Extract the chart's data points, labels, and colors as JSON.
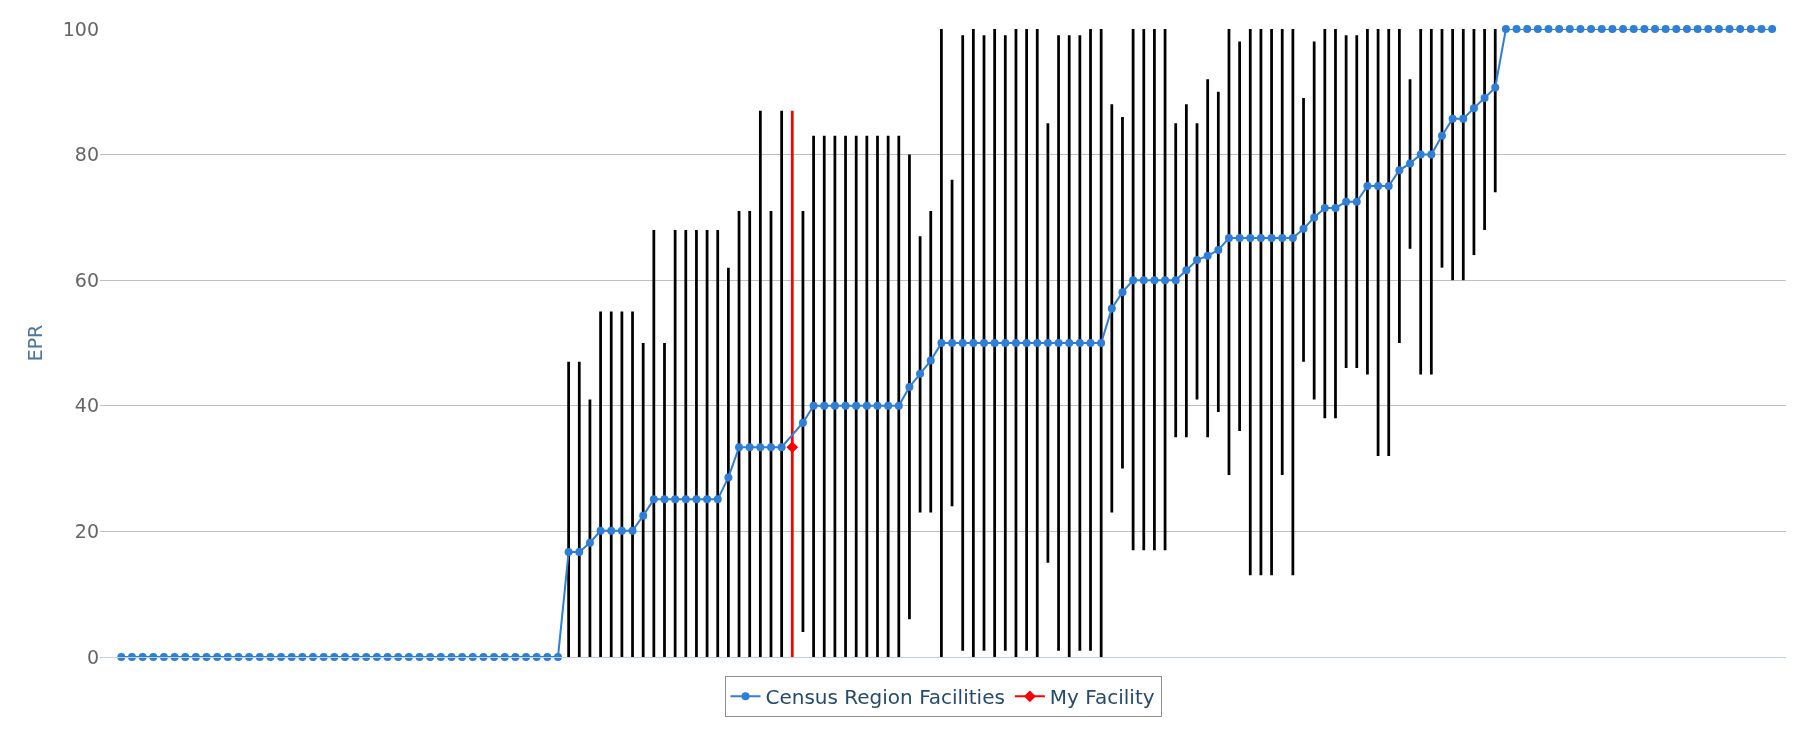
{
  "chart_data": {
    "type": "line",
    "ylabel": "EPR",
    "categories": [
      null,
      null,
      null,
      null,
      null,
      null,
      null,
      null,
      null,
      null,
      null,
      null,
      null,
      null,
      null,
      null,
      null,
      null,
      null,
      null,
      null,
      null,
      null,
      null,
      null,
      null,
      null,
      null,
      null,
      null,
      null,
      null,
      null,
      null,
      null,
      null,
      null,
      null,
      null,
      null,
      null,
      null,
      null,
      null,
      null,
      null,
      null,
      null,
      null,
      null,
      null,
      null,
      null,
      null,
      null,
      null,
      null,
      null,
      null,
      null,
      null,
      null,
      null,
      null,
      null,
      null,
      null,
      null,
      null,
      null,
      null,
      null,
      null,
      null,
      null,
      null,
      null,
      null,
      null,
      null,
      null,
      null,
      null,
      null,
      null,
      null,
      null,
      null,
      null,
      null,
      null,
      null,
      null,
      null,
      null,
      null,
      null,
      null,
      null,
      null,
      null,
      null,
      null,
      null,
      null,
      null,
      null,
      null,
      null,
      null,
      null,
      null,
      null,
      null,
      null,
      null,
      null,
      null,
      null,
      null,
      null,
      null,
      null,
      null,
      null,
      null,
      null,
      null,
      null,
      null,
      null,
      null,
      null,
      null,
      null,
      null,
      null,
      null,
      null,
      null,
      null,
      null,
      null,
      null,
      null,
      null,
      null,
      null,
      null,
      null,
      null,
      null,
      null,
      null,
      null,
      null
    ],
    "series": [
      {
        "type": "bar",
        "color": "#000000",
        "base": [
          null,
          null,
          null,
          null,
          null,
          null,
          null,
          null,
          null,
          null,
          null,
          null,
          null,
          null,
          null,
          null,
          null,
          null,
          null,
          null,
          null,
          null,
          null,
          null,
          null,
          null,
          null,
          null,
          null,
          null,
          null,
          null,
          null,
          null,
          null,
          null,
          null,
          null,
          null,
          null,
          null,
          null,
          0,
          0,
          0,
          0,
          0,
          0,
          0,
          0,
          0,
          0,
          0,
          0,
          0,
          0,
          0,
          0,
          0,
          0,
          0,
          0,
          0,
          null,
          4,
          0,
          0,
          0,
          0,
          0,
          0,
          0,
          0,
          0,
          6,
          23,
          23,
          0,
          24,
          1,
          0,
          1,
          0,
          1,
          0,
          1,
          0,
          15,
          1,
          0,
          1,
          1,
          0,
          23,
          30,
          17,
          17,
          17,
          17,
          35,
          35,
          41,
          35,
          39,
          29,
          36,
          13,
          13,
          13,
          29,
          13,
          47,
          41,
          38,
          38,
          46,
          46,
          45,
          32,
          32,
          50,
          65,
          45,
          45,
          62,
          60,
          60,
          64,
          68,
          74,
          null,
          null,
          null,
          null,
          null,
          null,
          null,
          null,
          null,
          null,
          null,
          null,
          null,
          null,
          null,
          null,
          null,
          null,
          null,
          null,
          null,
          null,
          null,
          null,
          null,
          null
        ],
        "values": [
          null,
          null,
          null,
          null,
          null,
          null,
          null,
          null,
          null,
          null,
          null,
          null,
          null,
          null,
          null,
          null,
          null,
          null,
          null,
          null,
          null,
          null,
          null,
          null,
          null,
          null,
          null,
          null,
          null,
          null,
          null,
          null,
          null,
          null,
          null,
          null,
          null,
          null,
          null,
          null,
          null,
          null,
          47,
          47,
          41,
          55,
          55,
          55,
          55,
          50,
          68,
          50,
          68,
          68,
          68,
          68,
          68,
          62,
          71,
          71,
          87,
          71,
          87,
          null,
          67,
          83,
          83,
          83,
          83,
          83,
          83,
          83,
          83,
          83,
          74,
          44,
          48,
          100,
          52,
          98,
          100,
          98,
          100,
          98,
          100,
          99,
          100,
          70,
          98,
          99,
          98,
          99,
          100,
          65,
          56,
          83,
          83,
          83,
          83,
          50,
          53,
          44,
          57,
          51,
          71,
          62,
          87,
          87,
          87,
          71,
          87,
          42,
          57,
          62,
          62,
          53,
          53,
          55,
          68,
          68,
          50,
          27,
          55,
          55,
          38,
          40,
          40,
          36,
          32,
          26,
          null,
          null,
          null,
          null,
          null,
          null,
          null,
          null,
          null,
          null,
          null,
          null,
          null,
          null,
          null,
          null,
          null,
          null,
          null,
          null,
          null,
          null,
          null,
          null,
          null,
          null
        ]
      },
      {
        "type": "bar",
        "color": "#ff0000",
        "base": [
          null,
          null,
          null,
          null,
          null,
          null,
          null,
          null,
          null,
          null,
          null,
          null,
          null,
          null,
          null,
          null,
          null,
          null,
          null,
          null,
          null,
          null,
          null,
          null,
          null,
          null,
          null,
          null,
          null,
          null,
          null,
          null,
          null,
          null,
          null,
          null,
          null,
          null,
          null,
          null,
          null,
          null,
          null,
          null,
          null,
          null,
          null,
          null,
          null,
          null,
          null,
          null,
          null,
          null,
          null,
          null,
          null,
          null,
          null,
          null,
          null,
          null,
          null,
          0,
          null,
          null,
          null,
          null,
          null,
          null,
          null,
          null,
          null,
          null,
          null,
          null,
          null,
          null,
          null,
          null,
          null,
          null,
          null,
          null,
          null,
          null,
          null,
          null,
          null,
          null,
          null,
          null,
          null,
          null,
          null,
          null,
          null,
          null,
          null,
          null,
          null,
          null,
          null,
          null,
          null,
          null,
          null,
          null,
          null,
          null,
          null,
          null,
          null,
          null,
          null,
          null,
          null,
          null,
          null,
          null,
          null,
          null,
          null,
          null,
          null,
          null,
          null,
          null,
          null,
          null,
          null,
          null,
          null,
          null,
          null,
          null,
          null,
          null,
          null,
          null,
          null,
          null,
          null,
          null,
          null,
          null,
          null,
          null,
          null,
          null,
          null,
          null,
          null,
          null,
          null,
          null
        ],
        "values": [
          null,
          null,
          null,
          null,
          null,
          null,
          null,
          null,
          null,
          null,
          null,
          null,
          null,
          null,
          null,
          null,
          null,
          null,
          null,
          null,
          null,
          null,
          null,
          null,
          null,
          null,
          null,
          null,
          null,
          null,
          null,
          null,
          null,
          null,
          null,
          null,
          null,
          null,
          null,
          null,
          null,
          null,
          null,
          null,
          null,
          null,
          null,
          null,
          null,
          null,
          null,
          null,
          null,
          null,
          null,
          null,
          null,
          null,
          null,
          null,
          null,
          null,
          null,
          87,
          null,
          null,
          null,
          null,
          null,
          null,
          null,
          null,
          null,
          null,
          null,
          null,
          null,
          null,
          null,
          null,
          null,
          null,
          null,
          null,
          null,
          null,
          null,
          null,
          null,
          null,
          null,
          null,
          null,
          null,
          null,
          null,
          null,
          null,
          null,
          null,
          null,
          null,
          null,
          null,
          null,
          null,
          null,
          null,
          null,
          null,
          null,
          null,
          null,
          null,
          null,
          null,
          null,
          null,
          null,
          null,
          null,
          null,
          null,
          null,
          null,
          null,
          null,
          null,
          null,
          null,
          null,
          null,
          null,
          null,
          null,
          null,
          null,
          null,
          null,
          null,
          null,
          null,
          null,
          null,
          null,
          null,
          null,
          null,
          null,
          null,
          null,
          null,
          null,
          null,
          null,
          null
        ]
      },
      {
        "name": "Census Region Facilities",
        "color": "#2f7ed8",
        "values": [
          0,
          0,
          0,
          0,
          0,
          0,
          0,
          0,
          0,
          0,
          0,
          0,
          0,
          0,
          0,
          0,
          0,
          0,
          0,
          0,
          0,
          0,
          0,
          0,
          0,
          0,
          0,
          0,
          0,
          0,
          0,
          0,
          0,
          0,
          0,
          0,
          0,
          0,
          0,
          0,
          0,
          0,
          16.7,
          16.7,
          18.2,
          20.1,
          20.1,
          20.1,
          20.1,
          22.5,
          25.1,
          25.1,
          25.1,
          25.1,
          25.1,
          25.1,
          25.1,
          28.6,
          33.4,
          33.4,
          33.4,
          33.4,
          33.4,
          null,
          37.3,
          40,
          40,
          40,
          40,
          40,
          40,
          40,
          40,
          40,
          43,
          45.1,
          47.2,
          50,
          50,
          50,
          50,
          50,
          50,
          50,
          50,
          50,
          50,
          50,
          50,
          50,
          50,
          50,
          50,
          55.5,
          58.1,
          60,
          60,
          60,
          60,
          60,
          61.6,
          63.2,
          63.9,
          64.8,
          66.7,
          66.7,
          66.7,
          66.7,
          66.7,
          66.7,
          66.7,
          68.2,
          70,
          71.5,
          71.5,
          72.5,
          72.5,
          75,
          75,
          75,
          77.5,
          78.6,
          80,
          80,
          83,
          85.7,
          85.7,
          87.4,
          89,
          90.7,
          100,
          100,
          100,
          100,
          100,
          100,
          100,
          100,
          100,
          100,
          100,
          100,
          100,
          100,
          100,
          100,
          100,
          100,
          100,
          100,
          100,
          100,
          100,
          100,
          100,
          100
        ]
      },
      {
        "name": "My Facility",
        "color": "#ff0000",
        "marker": "diamond",
        "values": [
          null,
          null,
          null,
          null,
          null,
          null,
          null,
          null,
          null,
          null,
          null,
          null,
          null,
          null,
          null,
          null,
          null,
          null,
          null,
          null,
          null,
          null,
          null,
          null,
          null,
          null,
          null,
          null,
          null,
          null,
          null,
          null,
          null,
          null,
          null,
          null,
          null,
          null,
          null,
          null,
          null,
          null,
          null,
          null,
          null,
          null,
          null,
          null,
          null,
          null,
          null,
          null,
          null,
          null,
          null,
          null,
          null,
          null,
          null,
          null,
          null,
          null,
          null,
          33.4,
          null,
          null,
          null,
          null,
          null,
          null,
          null,
          null,
          null,
          null,
          null,
          null,
          null,
          null,
          null,
          null,
          null,
          null,
          null,
          null,
          null,
          null,
          null,
          null,
          null,
          null,
          null,
          null,
          null,
          null,
          null,
          null,
          null,
          null,
          null,
          null,
          null,
          null,
          null,
          null,
          null,
          null,
          null,
          null,
          null,
          null,
          null,
          null,
          null,
          null,
          null,
          null,
          null,
          null,
          null,
          null,
          null,
          null,
          null,
          null,
          null,
          null,
          null,
          null,
          null,
          null,
          null,
          null,
          null,
          null,
          null,
          null,
          null,
          null,
          null,
          null,
          null,
          null,
          null,
          null,
          null,
          null,
          null,
          null,
          null,
          null,
          null,
          null,
          null,
          null,
          null,
          null
        ]
      }
    ],
    "ylim": [
      0,
      100
    ],
    "yticks": [
      0,
      20,
      40,
      60,
      80,
      100
    ],
    "grid": "y",
    "legend": "bottom",
    "marker": "circle",
    "line_style": "solid"
  }
}
